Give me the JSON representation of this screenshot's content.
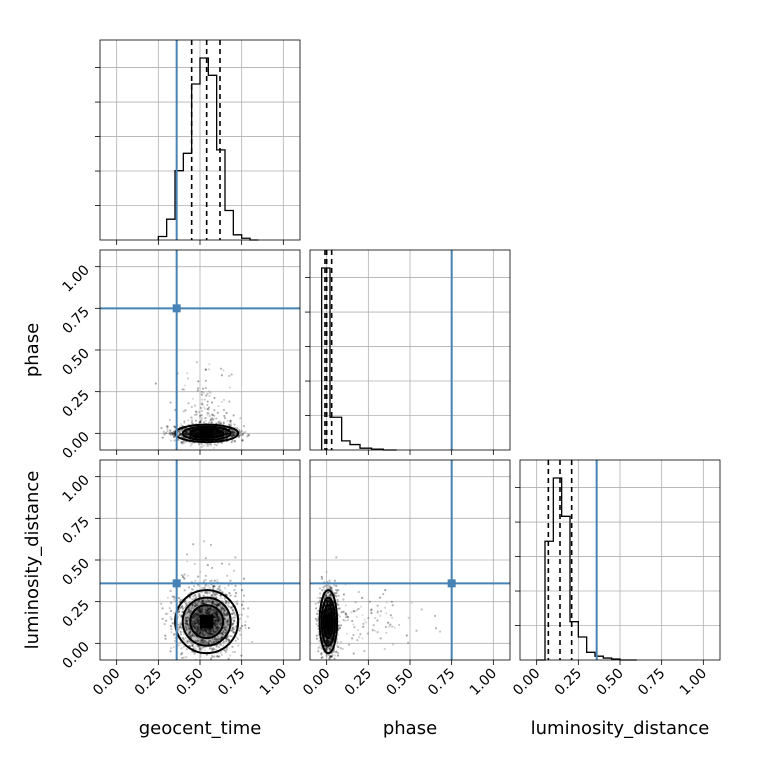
{
  "chart_data": {
    "type": "corner",
    "parameters": [
      "geocent_time",
      "phase",
      "luminosity_distance"
    ],
    "ticks": [
      0.0,
      0.25,
      0.5,
      0.75,
      1.0
    ],
    "tick_labels": [
      "0.00",
      "0.25",
      "0.50",
      "0.75",
      "1.00"
    ],
    "range": [
      -0.1,
      1.1
    ],
    "grid": true,
    "truths": {
      "geocent_time": 0.36,
      "phase": 0.75,
      "luminosity_distance": 0.36
    },
    "colors": {
      "truth": "#4682b4",
      "hist": "#000000",
      "samples": "#000000"
    },
    "diagonal": [
      {
        "param": "geocent_time",
        "bin_edges": [
          0.25,
          0.3,
          0.35,
          0.4,
          0.45,
          0.5,
          0.55,
          0.6,
          0.65,
          0.7,
          0.75,
          0.8,
          0.85
        ],
        "counts": [
          2,
          12,
          40,
          50,
          90,
          105,
          95,
          52,
          17,
          3,
          1,
          0
        ],
        "quantiles": [
          0.45,
          0.54,
          0.62
        ]
      },
      {
        "param": "phase",
        "bin_edges": [
          -0.03,
          0.02,
          0.09,
          0.14,
          0.2,
          0.27,
          0.34,
          0.42
        ],
        "counts": [
          100,
          18,
          5,
          3,
          1,
          0.5,
          0
        ],
        "quantiles": [
          -0.01,
          0.0,
          0.03
        ]
      },
      {
        "param": "luminosity_distance",
        "bin_edges": [
          0.0,
          0.05,
          0.1,
          0.15,
          0.2,
          0.25,
          0.3,
          0.35,
          0.4,
          0.45,
          0.5,
          0.55,
          0.6
        ],
        "counts": [
          0,
          62,
          95,
          75,
          20,
          12,
          4,
          2,
          1,
          0.5,
          0,
          0
        ],
        "quantiles": [
          0.07,
          0.14,
          0.21
        ]
      }
    ],
    "pairs": [
      {
        "x": "geocent_time",
        "y": "phase",
        "center": [
          0.54,
          0.0
        ],
        "spread": [
          0.09,
          0.025
        ]
      },
      {
        "x": "geocent_time",
        "y": "luminosity_distance",
        "center": [
          0.54,
          0.13
        ],
        "spread": [
          0.09,
          0.09
        ]
      },
      {
        "x": "phase",
        "y": "luminosity_distance",
        "center": [
          0.01,
          0.13
        ],
        "spread": [
          0.025,
          0.09
        ]
      }
    ]
  }
}
